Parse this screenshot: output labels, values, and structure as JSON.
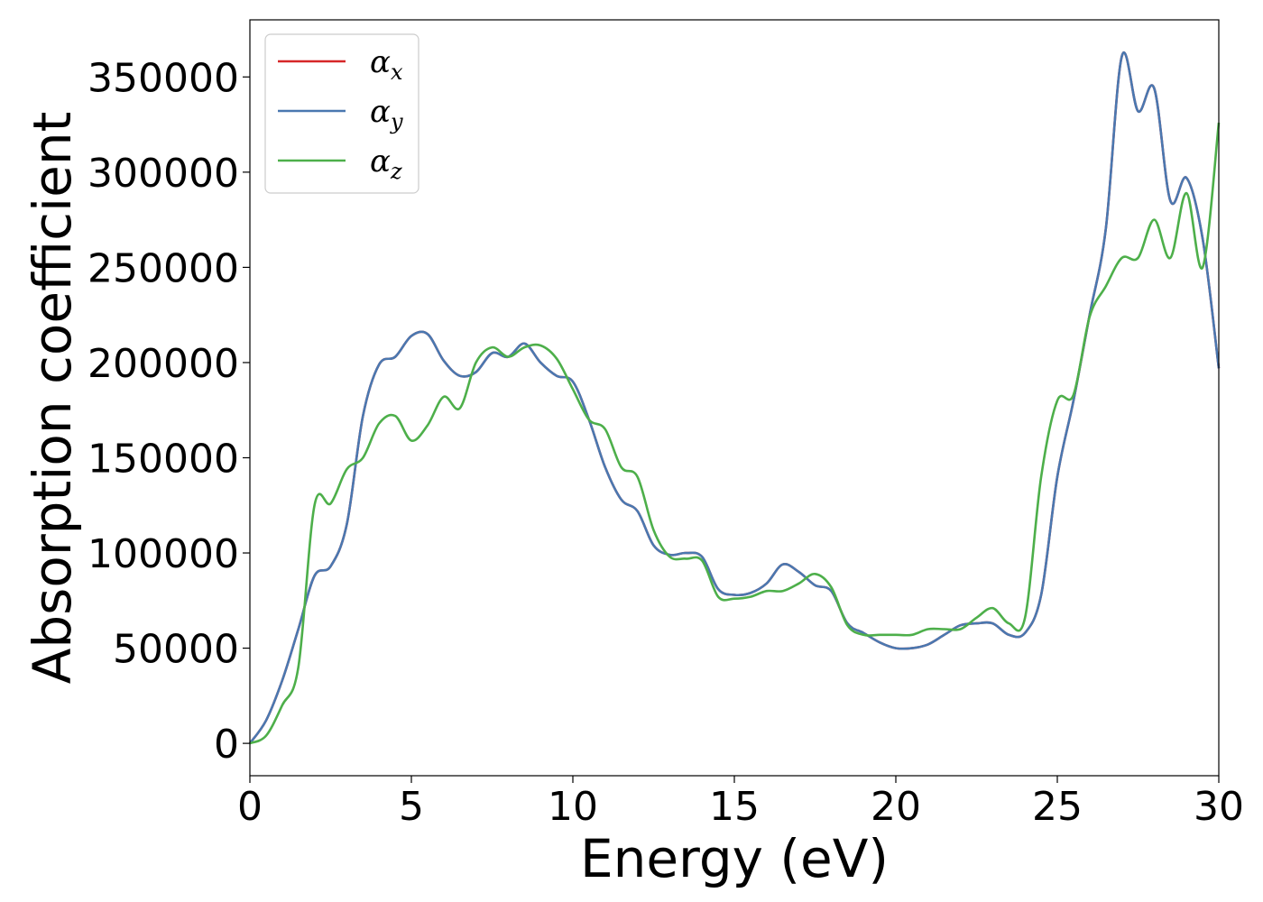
{
  "chart_data": {
    "type": "line",
    "xlabel": "Energy (eV)",
    "ylabel": "Absorption coefficient",
    "xlim": [
      0,
      30
    ],
    "ylim": [
      -17000,
      380000
    ],
    "xticks": [
      0,
      5,
      10,
      15,
      20,
      25,
      30
    ],
    "yticks": [
      0,
      50000,
      100000,
      150000,
      200000,
      250000,
      300000,
      350000
    ],
    "grid": false,
    "legend_position": "top-left",
    "series": [
      {
        "name": "αx",
        "legend": {
          "base": "α",
          "sub": "x"
        },
        "color": "#d62728",
        "x": [
          0,
          0.5,
          1,
          1.5,
          2,
          2.5,
          3,
          3.5,
          4,
          4.5,
          5,
          5.5,
          6,
          6.5,
          7,
          7.5,
          8,
          8.5,
          9,
          9.5,
          10,
          10.5,
          11,
          11.5,
          12,
          12.5,
          13,
          13.5,
          14,
          14.5,
          15,
          15.5,
          16,
          16.5,
          17,
          17.5,
          18,
          18.5,
          19,
          19.5,
          20,
          20.5,
          21,
          21.5,
          22,
          22.5,
          23,
          23.5,
          24,
          24.5,
          25,
          25.5,
          26,
          26.5,
          27,
          27.5,
          28,
          28.5,
          29,
          29.5,
          30
        ],
        "values": [
          0,
          12000,
          33000,
          60000,
          88000,
          93000,
          115000,
          172000,
          199000,
          203000,
          214000,
          215000,
          201000,
          193000,
          195000,
          205000,
          203000,
          210000,
          200000,
          193000,
          190000,
          170000,
          145000,
          128000,
          122000,
          104000,
          99000,
          100000,
          98000,
          81000,
          78000,
          79000,
          84000,
          94000,
          90000,
          83000,
          80000,
          63000,
          58000,
          53000,
          50000,
          50000,
          52000,
          57000,
          62000,
          63000,
          63000,
          57000,
          58000,
          78000,
          140000,
          180000,
          225000,
          270000,
          361000,
          332000,
          344000,
          285000,
          297000,
          265000,
          197000
        ]
      },
      {
        "name": "αy",
        "legend": {
          "base": "α",
          "sub": "y"
        },
        "color": "#4a78b0",
        "x": [
          0,
          0.5,
          1,
          1.5,
          2,
          2.5,
          3,
          3.5,
          4,
          4.5,
          5,
          5.5,
          6,
          6.5,
          7,
          7.5,
          8,
          8.5,
          9,
          9.5,
          10,
          10.5,
          11,
          11.5,
          12,
          12.5,
          13,
          13.5,
          14,
          14.5,
          15,
          15.5,
          16,
          16.5,
          17,
          17.5,
          18,
          18.5,
          19,
          19.5,
          20,
          20.5,
          21,
          21.5,
          22,
          22.5,
          23,
          23.5,
          24,
          24.5,
          25,
          25.5,
          26,
          26.5,
          27,
          27.5,
          28,
          28.5,
          29,
          29.5,
          30
        ],
        "values": [
          0,
          12000,
          33000,
          60000,
          88000,
          93000,
          115000,
          172000,
          199000,
          203000,
          214000,
          215000,
          201000,
          193000,
          195000,
          205000,
          203000,
          210000,
          200000,
          193000,
          190000,
          170000,
          145000,
          128000,
          122000,
          104000,
          99000,
          100000,
          98000,
          81000,
          78000,
          79000,
          84000,
          94000,
          90000,
          83000,
          80000,
          63000,
          58000,
          53000,
          50000,
          50000,
          52000,
          57000,
          62000,
          63000,
          63000,
          57000,
          58000,
          78000,
          140000,
          180000,
          225000,
          270000,
          361000,
          332000,
          344000,
          285000,
          297000,
          265000,
          197000
        ]
      },
      {
        "name": "αz",
        "legend": {
          "base": "α",
          "sub": "z"
        },
        "color": "#4daf4a",
        "x": [
          0,
          0.5,
          1,
          1.5,
          2,
          2.5,
          3,
          3.5,
          4,
          4.5,
          5,
          5.5,
          6,
          6.5,
          7,
          7.5,
          8,
          8.5,
          9,
          9.5,
          10,
          10.5,
          11,
          11.5,
          12,
          12.5,
          13,
          13.5,
          14,
          14.5,
          15,
          15.5,
          16,
          16.5,
          17,
          17.5,
          18,
          18.5,
          19,
          19.5,
          20,
          20.5,
          21,
          21.5,
          22,
          22.5,
          23,
          23.5,
          24,
          24.5,
          25,
          25.5,
          26,
          26.5,
          27,
          27.5,
          28,
          28.5,
          29,
          29.5,
          30
        ],
        "values": [
          0,
          4000,
          20000,
          40000,
          125000,
          126000,
          144000,
          150000,
          168000,
          172000,
          159000,
          167000,
          182000,
          176000,
          200000,
          208000,
          203000,
          208000,
          209000,
          202000,
          186000,
          170000,
          165000,
          145000,
          140000,
          112000,
          98000,
          97000,
          96000,
          77000,
          76000,
          77000,
          80000,
          80000,
          84000,
          89000,
          82000,
          62000,
          57000,
          57000,
          57000,
          57000,
          60000,
          60000,
          60000,
          66000,
          71000,
          63000,
          66000,
          140000,
          180000,
          183000,
          224000,
          240000,
          255000,
          255000,
          275000,
          255000,
          289000,
          250000,
          326000
        ]
      }
    ]
  }
}
